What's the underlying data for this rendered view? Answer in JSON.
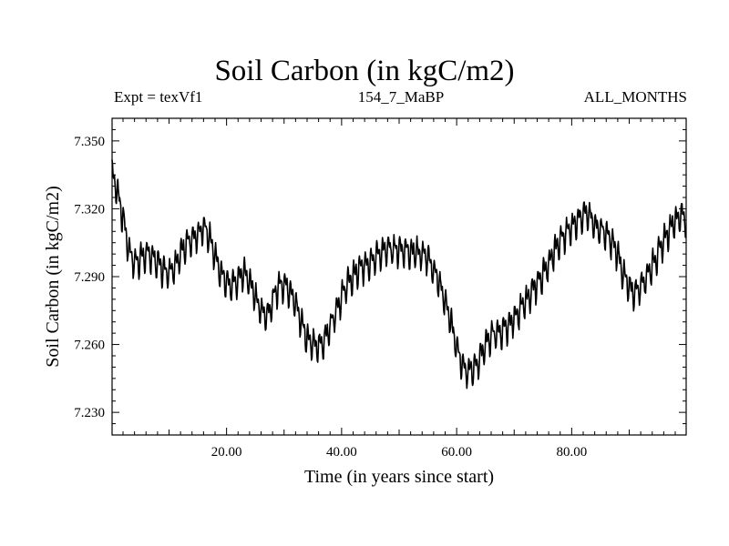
{
  "chart_data": {
    "type": "line",
    "title": "Soil Carbon (in kgC/m2)",
    "subtitle_left": "Expt = texVf1",
    "subtitle_center": "154_7_MaBP",
    "subtitle_right": "ALL_MONTHS",
    "xlabel": "Time (in years since start)",
    "ylabel": "Soil Carbon (in kgC/m2)",
    "xlim": [
      0.1,
      99.9
    ],
    "ylim": [
      7.22,
      7.36
    ],
    "x_ticks": [
      "20.00",
      "40.00",
      "60.00",
      "80.00"
    ],
    "x_tick_values": [
      20,
      40,
      60,
      80
    ],
    "y_ticks": [
      "7.230",
      "7.260",
      "7.290",
      "7.320",
      "7.350"
    ],
    "y_tick_values": [
      7.23,
      7.26,
      7.29,
      7.32,
      7.35
    ],
    "seasonal_amplitude": 0.008,
    "series": [
      {
        "name": "Soil Carbon",
        "color": "#000000",
        "x": [
          0.1,
          1,
          2,
          3,
          4,
          5,
          6,
          7,
          8,
          9,
          10,
          11,
          12,
          13,
          14,
          15,
          16,
          17,
          18,
          19,
          20,
          21,
          22,
          23,
          24,
          25,
          26,
          27,
          28,
          29,
          30,
          31,
          32,
          33,
          34,
          35,
          36,
          37,
          38,
          39,
          40,
          41,
          42,
          43,
          44,
          45,
          46,
          47,
          48,
          49,
          50,
          51,
          52,
          53,
          54,
          55,
          56,
          57,
          58,
          59,
          60,
          61,
          62,
          63,
          64,
          65,
          66,
          67,
          68,
          69,
          70,
          71,
          72,
          73,
          74,
          75,
          76,
          77,
          78,
          79,
          80,
          81,
          82,
          83,
          84,
          85,
          86,
          87,
          88,
          89,
          90,
          91,
          92,
          93,
          94,
          95,
          96,
          97,
          98,
          99,
          99.9
        ],
        "values": [
          7.336,
          7.328,
          7.316,
          7.302,
          7.296,
          7.298,
          7.3,
          7.299,
          7.296,
          7.293,
          7.292,
          7.295,
          7.3,
          7.305,
          7.306,
          7.308,
          7.312,
          7.308,
          7.299,
          7.292,
          7.288,
          7.286,
          7.289,
          7.292,
          7.288,
          7.281,
          7.275,
          7.273,
          7.279,
          7.286,
          7.287,
          7.284,
          7.278,
          7.27,
          7.263,
          7.26,
          7.259,
          7.262,
          7.268,
          7.275,
          7.281,
          7.287,
          7.29,
          7.293,
          7.295,
          7.297,
          7.299,
          7.301,
          7.302,
          7.302,
          7.302,
          7.302,
          7.301,
          7.301,
          7.3,
          7.298,
          7.293,
          7.287,
          7.279,
          7.27,
          7.259,
          7.251,
          7.248,
          7.249,
          7.254,
          7.26,
          7.264,
          7.265,
          7.266,
          7.268,
          7.272,
          7.275,
          7.279,
          7.283,
          7.287,
          7.291,
          7.296,
          7.301,
          7.306,
          7.309,
          7.312,
          7.315,
          7.318,
          7.317,
          7.313,
          7.311,
          7.309,
          7.305,
          7.3,
          7.291,
          7.285,
          7.283,
          7.286,
          7.29,
          7.295,
          7.3,
          7.306,
          7.311,
          7.315,
          7.317,
          7.316
        ]
      }
    ]
  }
}
